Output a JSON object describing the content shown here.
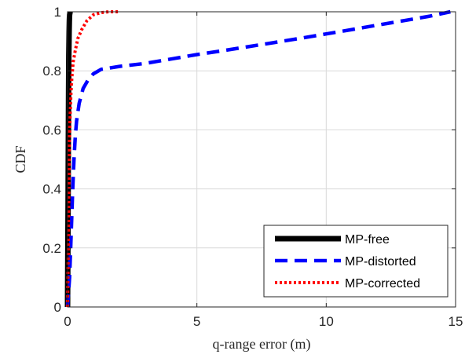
{
  "chart_data": {
    "type": "line",
    "xlabel": "q-range error (m)",
    "ylabel": "CDF",
    "xlim": [
      0,
      15
    ],
    "ylim": [
      0,
      1
    ],
    "xticks": [
      0,
      5,
      10,
      15
    ],
    "yticks": [
      0,
      0.2,
      0.4,
      0.6,
      0.8,
      1
    ],
    "xtick_labels": [
      "0",
      "5",
      "10",
      "15"
    ],
    "ytick_labels": [
      "0",
      "0.2",
      "0.4",
      "0.6",
      "0.8",
      "1"
    ],
    "grid": true,
    "legend_position": "bottom-right",
    "series": [
      {
        "name": "MP-free",
        "color": "#000000",
        "style": "solid",
        "x": [
          0,
          0.01,
          0.02,
          0.03,
          0.04,
          0.05,
          0.06,
          0.07,
          0.08,
          0.1
        ],
        "y": [
          0,
          0.15,
          0.35,
          0.55,
          0.72,
          0.85,
          0.93,
          0.97,
          0.99,
          1.0
        ]
      },
      {
        "name": "MP-distorted",
        "color": "#0000ff",
        "style": "dashed",
        "x": [
          0,
          0.08,
          0.12,
          0.16,
          0.2,
          0.25,
          0.3,
          0.35,
          0.45,
          0.6,
          0.8,
          1.0,
          1.3,
          2.0,
          3.0,
          4.0,
          5.0,
          6.0,
          7.0,
          8.0,
          9.0,
          10.0,
          11.0,
          12.0,
          13.0,
          14.0,
          14.8
        ],
        "y": [
          0,
          0.1,
          0.2,
          0.3,
          0.4,
          0.5,
          0.58,
          0.63,
          0.69,
          0.74,
          0.77,
          0.79,
          0.805,
          0.815,
          0.825,
          0.84,
          0.855,
          0.868,
          0.882,
          0.896,
          0.91,
          0.925,
          0.94,
          0.955,
          0.97,
          0.985,
          1.0
        ]
      },
      {
        "name": "MP-corrected",
        "color": "#ff0000",
        "style": "dotted",
        "x": [
          0,
          0.03,
          0.05,
          0.07,
          0.1,
          0.13,
          0.17,
          0.22,
          0.3,
          0.4,
          0.55,
          0.75,
          1.0,
          1.3,
          1.6,
          2.0
        ],
        "y": [
          0,
          0.2,
          0.4,
          0.55,
          0.65,
          0.72,
          0.78,
          0.83,
          0.87,
          0.91,
          0.94,
          0.97,
          0.99,
          0.997,
          1.0,
          1.0
        ]
      }
    ]
  }
}
